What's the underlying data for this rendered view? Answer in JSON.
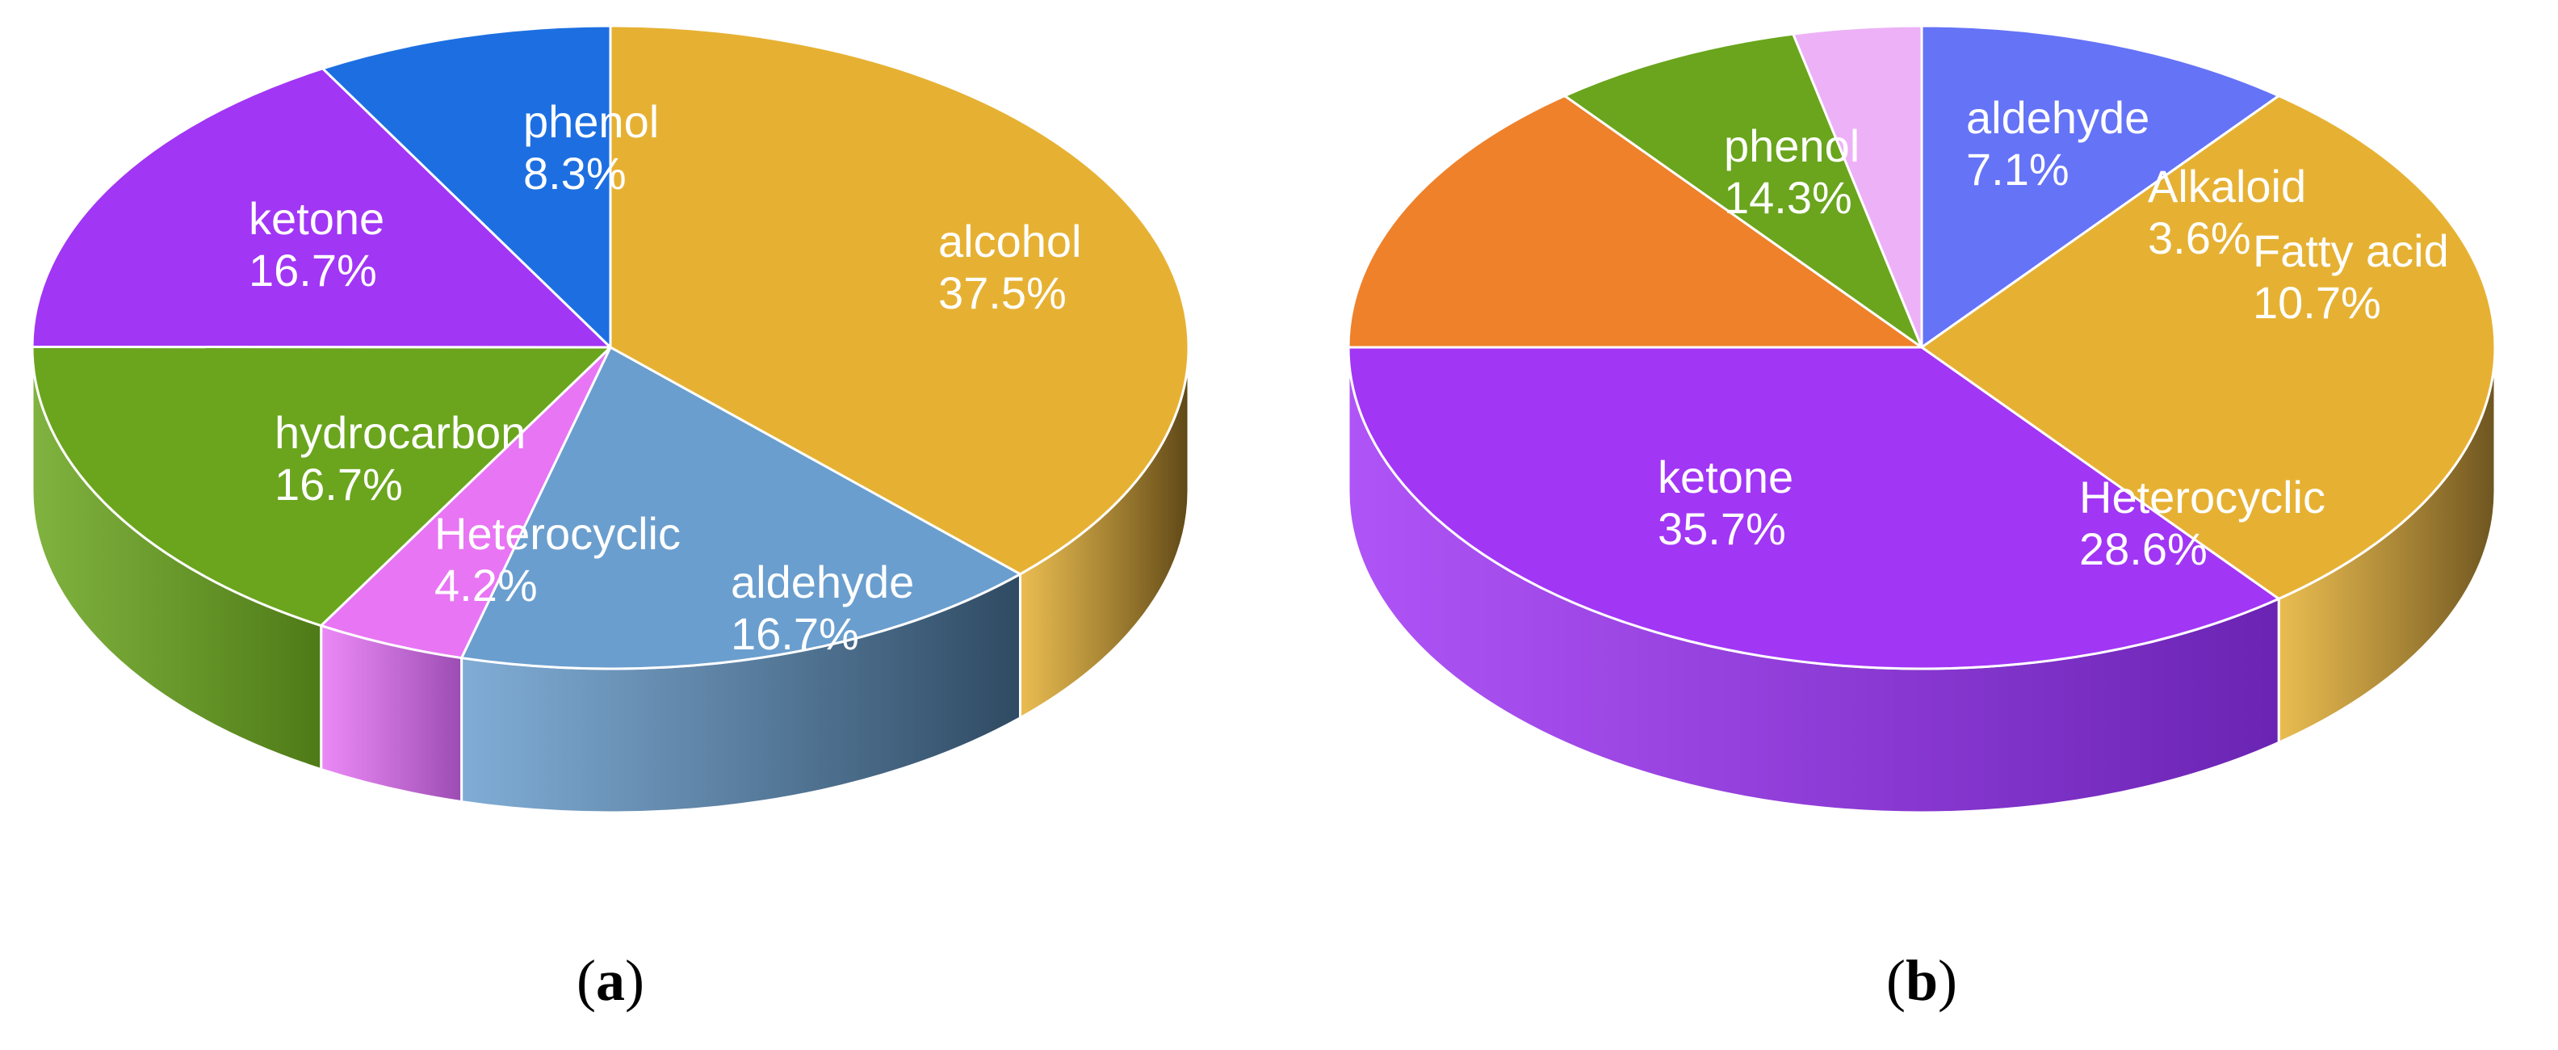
{
  "chart_data": [
    {
      "type": "pie",
      "panel": "a",
      "slices": [
        {
          "label": "alcohol",
          "pct_text": "37.5%",
          "value": 37.5,
          "color": "#E6B133",
          "side": "#5F4817"
        },
        {
          "label": "aldehyde",
          "pct_text": "16.7%",
          "value": 16.7,
          "color": "#6A9ECE",
          "side": "#2F4A62"
        },
        {
          "label": "Heterocyclic",
          "pct_text": "4.2%",
          "value": 4.2,
          "color": "#E875F4",
          "side": "#9B4CB3"
        },
        {
          "label": "hydrocarbon",
          "pct_text": "16.7%",
          "value": 16.7,
          "color": "#6AA51D",
          "side": "#4E7A17"
        },
        {
          "label": "ketone",
          "pct_text": "16.7%",
          "value": 16.7,
          "color": "#A136F5",
          "side": "#6E22AE"
        },
        {
          "label": "phenol",
          "pct_text": "8.3%",
          "value": 8.3,
          "color": "#1D6FE1",
          "side": "#144F9E"
        }
      ]
    },
    {
      "type": "pie",
      "panel": "b",
      "slices": [
        {
          "label": "Fatty acid",
          "pct_text": "10.7%",
          "value": 10.7,
          "color": "#6573F7",
          "side": "#3E48A8"
        },
        {
          "label": "Heterocyclic",
          "pct_text": "28.6%",
          "value": 28.6,
          "color": "#E6B133",
          "side": "#6E5520"
        },
        {
          "label": "ketone",
          "pct_text": "35.7%",
          "value": 35.7,
          "color": "#A136F5",
          "side": "#6A24B3"
        },
        {
          "label": "phenol",
          "pct_text": "14.3%",
          "value": 14.3,
          "color": "#EE812A",
          "side": "#A85A1D"
        },
        {
          "label": "aldehyde",
          "pct_text": "7.1%",
          "value": 7.1,
          "color": "#6AA51D",
          "side": "#4E7A17"
        },
        {
          "label": "Alkaloid",
          "pct_text": "3.6%",
          "value": 3.6,
          "color": "#EDB1F7",
          "side": "#B27CC0"
        }
      ]
    }
  ],
  "captions": {
    "a_open": "(",
    "a_letter": "a",
    "a_close": ")",
    "b_open": "(",
    "b_letter": "b",
    "b_close": ")"
  }
}
